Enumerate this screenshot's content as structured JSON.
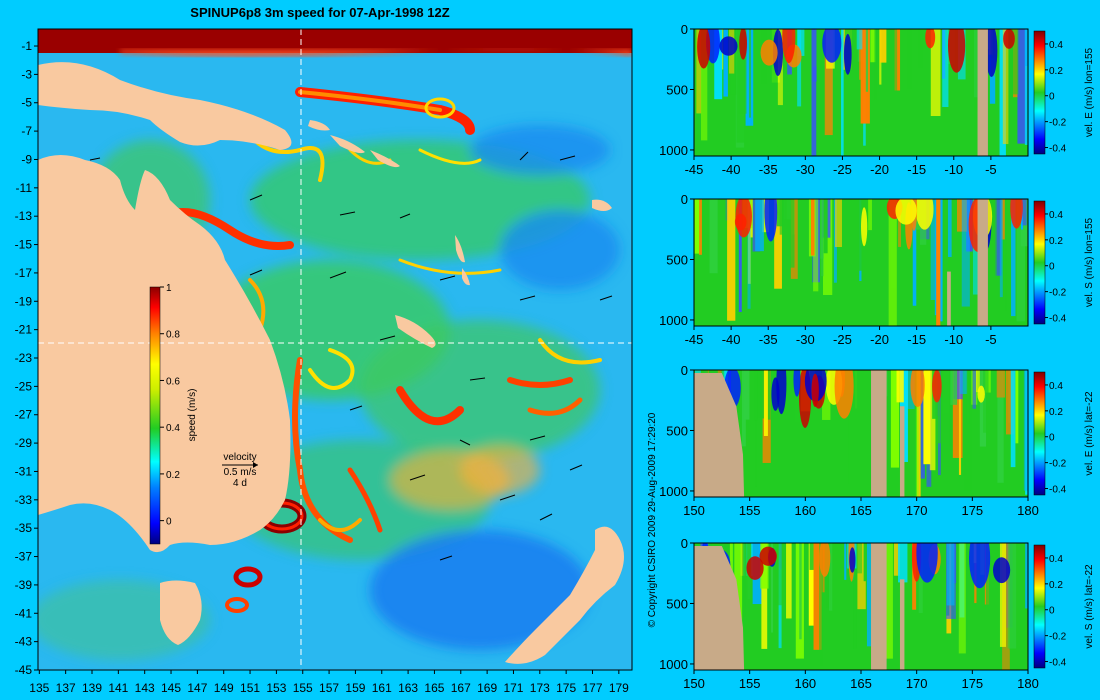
{
  "title": "SPINUP6p8 3m speed for 07-Apr-1998 12Z",
  "copyright": "© Copyright CSIRO 2009   29-Aug-2009 17:29:20",
  "colors": {
    "background": "#00ccff",
    "land": "#f9c9a0",
    "section_land": "#c8aa88",
    "dashed": "#ffffff"
  },
  "chart_data": [
    {
      "type": "heatmap",
      "name": "map",
      "x_ticks": [
        135,
        137,
        139,
        141,
        143,
        145,
        147,
        149,
        151,
        153,
        155,
        157,
        159,
        161,
        163,
        165,
        167,
        169,
        171,
        173,
        175,
        177,
        179
      ],
      "y_ticks": [
        -1,
        -3,
        -5,
        -7,
        -9,
        -11,
        -13,
        -15,
        -17,
        -19,
        -21,
        -23,
        -25,
        -27,
        -29,
        -31,
        -33,
        -35,
        -37,
        -39,
        -41,
        -43,
        -45
      ],
      "xlim": [
        134.9,
        180
      ],
      "ylim": [
        -45,
        0.2
      ],
      "dashed_lon": 155,
      "dashed_lat": -22,
      "colorbar": {
        "label": "speed (m/s)",
        "ticks": [
          0,
          0.2,
          0.4,
          0.6,
          0.8,
          1
        ],
        "range": [
          -0.1,
          1
        ]
      },
      "velocity_key": {
        "label": "velocity",
        "scale": "0.5 m/s",
        "interval": "4 d"
      }
    },
    {
      "type": "heatmap",
      "name": "section1",
      "x_ticks": [
        -45,
        -40,
        -35,
        -30,
        -25,
        -20,
        -15,
        -10,
        -5
      ],
      "xlim": [
        -45,
        0
      ],
      "y_ticks": [
        0,
        500,
        1000
      ],
      "ylim": [
        1050,
        0
      ],
      "colorbar": {
        "label": "vel. E (m/s) lon=155",
        "ticks": [
          -0.4,
          -0.2,
          0,
          0.2,
          0.4
        ]
      }
    },
    {
      "type": "heatmap",
      "name": "section2",
      "x_ticks": [
        -45,
        -40,
        -35,
        -30,
        -25,
        -20,
        -15,
        -10,
        -5
      ],
      "xlim": [
        -45,
        0
      ],
      "y_ticks": [
        0,
        500,
        1000
      ],
      "ylim": [
        1050,
        0
      ],
      "colorbar": {
        "label": "vel. S (m/s) lon=155",
        "ticks": [
          -0.4,
          -0.2,
          0,
          0.2,
          0.4
        ]
      }
    },
    {
      "type": "heatmap",
      "name": "section3",
      "x_ticks": [
        150,
        155,
        160,
        165,
        170,
        175,
        180
      ],
      "xlim": [
        150,
        180
      ],
      "y_ticks": [
        0,
        500,
        1000
      ],
      "ylim": [
        1050,
        0
      ],
      "colorbar": {
        "label": "vel. E (m/s) lat=-22",
        "ticks": [
          -0.4,
          -0.2,
          0,
          0.2,
          0.4
        ]
      }
    },
    {
      "type": "heatmap",
      "name": "section4",
      "x_ticks": [
        150,
        155,
        160,
        165,
        170,
        175,
        180
      ],
      "xlim": [
        150,
        180
      ],
      "y_ticks": [
        0,
        500,
        1000
      ],
      "ylim": [
        1050,
        0
      ],
      "colorbar": {
        "label": "vel. S (m/s) lat=-22",
        "ticks": [
          -0.4,
          -0.2,
          0,
          0.2,
          0.4
        ]
      }
    }
  ]
}
